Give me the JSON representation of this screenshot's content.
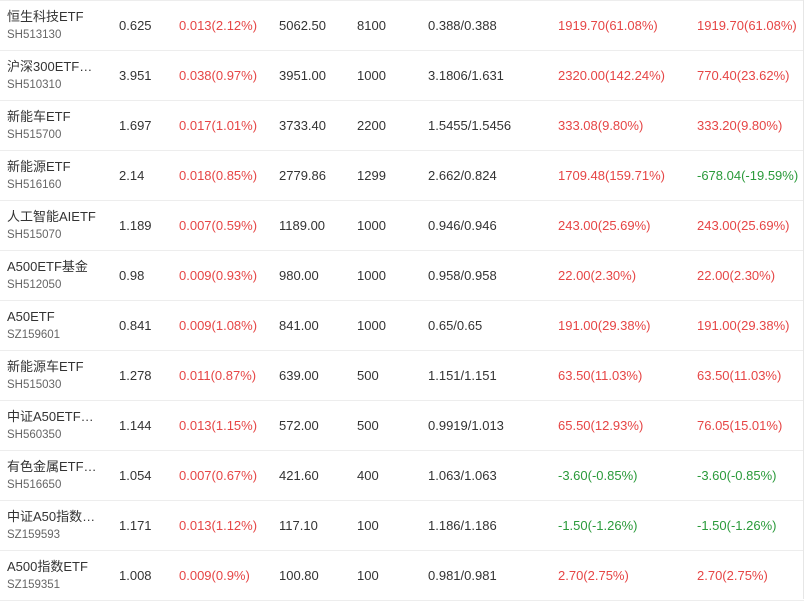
{
  "colors": {
    "up": "#e64545",
    "down": "#2a9a3a",
    "text": "#333333",
    "code": "#666666",
    "divider": "#ededed"
  },
  "rows": [
    {
      "name": "恒生科技ETF",
      "code": "SH513130",
      "price": "0.625",
      "change": "0.013(2.12%)",
      "value": "5062.50",
      "shares": "8100",
      "cost": "0.388/0.388",
      "total": "1919.70(61.08%)",
      "hold": "1919.70(61.08%)",
      "change_dir": "up",
      "total_dir": "up",
      "hold_dir": "up"
    },
    {
      "name": "沪深300ETF…",
      "code": "SH510310",
      "price": "3.951",
      "change": "0.038(0.97%)",
      "value": "3951.00",
      "shares": "1000",
      "cost": "3.1806/1.631",
      "total": "2320.00(142.24%)",
      "hold": "770.40(23.62%)",
      "change_dir": "up",
      "total_dir": "up",
      "hold_dir": "up"
    },
    {
      "name": "新能车ETF",
      "code": "SH515700",
      "price": "1.697",
      "change": "0.017(1.01%)",
      "value": "3733.40",
      "shares": "2200",
      "cost": "1.5455/1.5456",
      "total": "333.08(9.80%)",
      "hold": "333.20(9.80%)",
      "change_dir": "up",
      "total_dir": "up",
      "hold_dir": "up"
    },
    {
      "name": "新能源ETF",
      "code": "SH516160",
      "price": "2.14",
      "change": "0.018(0.85%)",
      "value": "2779.86",
      "shares": "1299",
      "cost": "2.662/0.824",
      "total": "1709.48(159.71%)",
      "hold": "-678.04(-19.59%)",
      "change_dir": "up",
      "total_dir": "up",
      "hold_dir": "down"
    },
    {
      "name": "人工智能AIETF",
      "code": "SH515070",
      "price": "1.189",
      "change": "0.007(0.59%)",
      "value": "1189.00",
      "shares": "1000",
      "cost": "0.946/0.946",
      "total": "243.00(25.69%)",
      "hold": "243.00(25.69%)",
      "change_dir": "up",
      "total_dir": "up",
      "hold_dir": "up"
    },
    {
      "name": "A500ETF基金",
      "code": "SH512050",
      "price": "0.98",
      "change": "0.009(0.93%)",
      "value": "980.00",
      "shares": "1000",
      "cost": "0.958/0.958",
      "total": "22.00(2.30%)",
      "hold": "22.00(2.30%)",
      "change_dir": "up",
      "total_dir": "up",
      "hold_dir": "up"
    },
    {
      "name": "A50ETF",
      "code": "SZ159601",
      "price": "0.841",
      "change": "0.009(1.08%)",
      "value": "841.00",
      "shares": "1000",
      "cost": "0.65/0.65",
      "total": "191.00(29.38%)",
      "hold": "191.00(29.38%)",
      "change_dir": "up",
      "total_dir": "up",
      "hold_dir": "up"
    },
    {
      "name": "新能源车ETF",
      "code": "SH515030",
      "price": "1.278",
      "change": "0.011(0.87%)",
      "value": "639.00",
      "shares": "500",
      "cost": "1.151/1.151",
      "total": "63.50(11.03%)",
      "hold": "63.50(11.03%)",
      "change_dir": "up",
      "total_dir": "up",
      "hold_dir": "up"
    },
    {
      "name": "中证A50ETF…",
      "code": "SH560350",
      "price": "1.144",
      "change": "0.013(1.15%)",
      "value": "572.00",
      "shares": "500",
      "cost": "0.9919/1.013",
      "total": "65.50(12.93%)",
      "hold": "76.05(15.01%)",
      "change_dir": "up",
      "total_dir": "up",
      "hold_dir": "up"
    },
    {
      "name": "有色金属ETF…",
      "code": "SH516650",
      "price": "1.054",
      "change": "0.007(0.67%)",
      "value": "421.60",
      "shares": "400",
      "cost": "1.063/1.063",
      "total": "-3.60(-0.85%)",
      "hold": "-3.60(-0.85%)",
      "change_dir": "up",
      "total_dir": "down",
      "hold_dir": "down"
    },
    {
      "name": "中证A50指数…",
      "code": "SZ159593",
      "price": "1.171",
      "change": "0.013(1.12%)",
      "value": "117.10",
      "shares": "100",
      "cost": "1.186/1.186",
      "total": "-1.50(-1.26%)",
      "hold": "-1.50(-1.26%)",
      "change_dir": "up",
      "total_dir": "down",
      "hold_dir": "down"
    },
    {
      "name": "A500指数ETF",
      "code": "SZ159351",
      "price": "1.008",
      "change": "0.009(0.9%)",
      "value": "100.80",
      "shares": "100",
      "cost": "0.981/0.981",
      "total": "2.70(2.75%)",
      "hold": "2.70(2.75%)",
      "change_dir": "up",
      "total_dir": "up",
      "hold_dir": "up"
    }
  ]
}
